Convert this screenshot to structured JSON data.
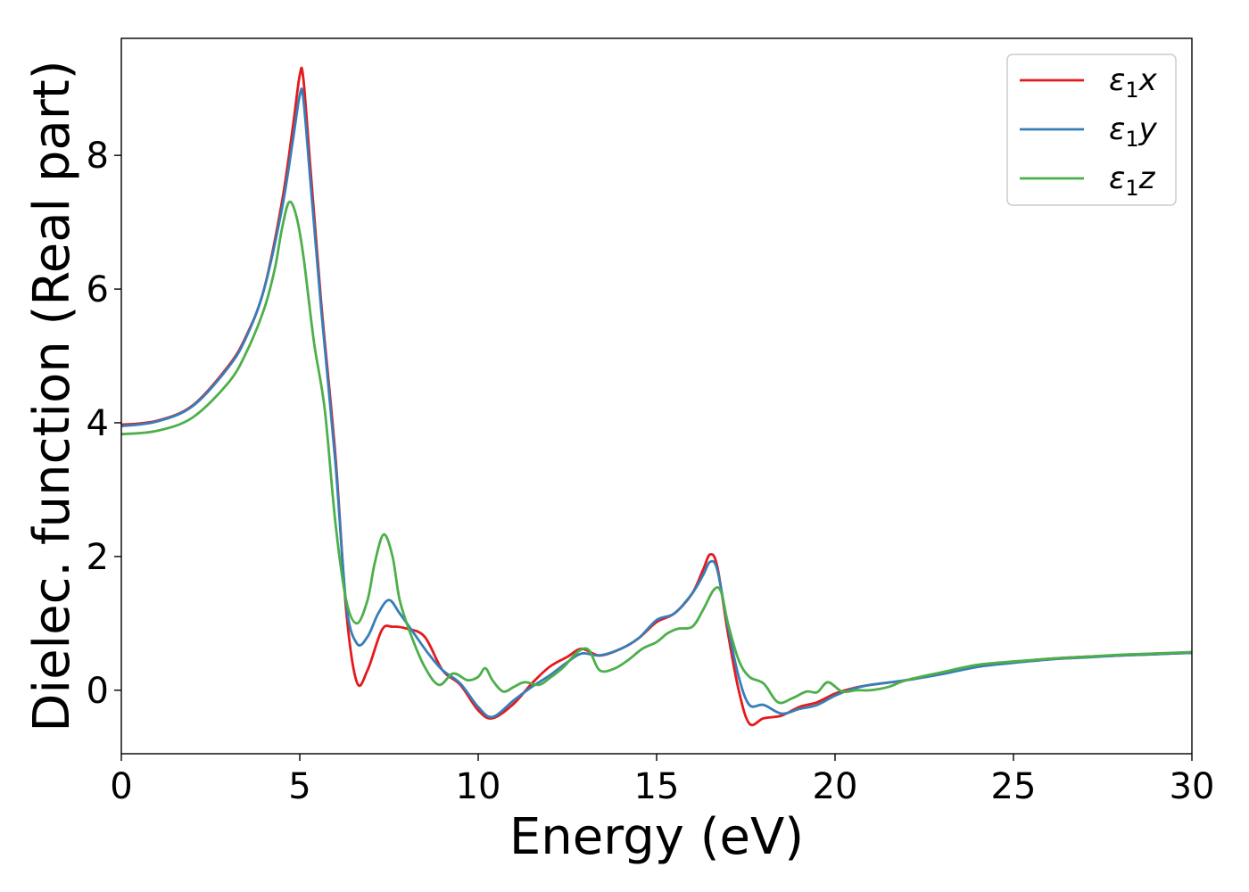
{
  "chart_data": {
    "type": "line",
    "title": "",
    "xlabel": "Energy (eV)",
    "ylabel": "Dielec. function (Real part)",
    "xlim": [
      0,
      30
    ],
    "ylim": [
      -0.95,
      9.75
    ],
    "xticks": [
      0,
      5,
      10,
      15,
      20,
      25,
      30
    ],
    "yticks": [
      0,
      2,
      4,
      6,
      8
    ],
    "grid": false,
    "legend_position": "top-right",
    "series": [
      {
        "name": "ε₁x",
        "label_base": "ε",
        "label_sub": "1",
        "label_tail": "x",
        "color": "#e41a1c",
        "x": [
          0,
          1,
          2,
          3,
          3.5,
          4,
          4.5,
          4.8,
          5.0,
          5.1,
          5.3,
          5.6,
          6.0,
          6.3,
          6.6,
          6.9,
          7.3,
          7.6,
          8.0,
          8.5,
          9.0,
          9.5,
          10.0,
          10.4,
          11.0,
          11.5,
          12.0,
          12.5,
          12.9,
          13.4,
          14.0,
          14.5,
          15.0,
          15.5,
          16.0,
          16.3,
          16.5,
          16.7,
          17.0,
          17.3,
          17.6,
          18.0,
          18.5,
          19.0,
          19.5,
          20.0,
          20.5,
          21.0,
          22.0,
          23.0,
          24.0,
          25.0,
          26.0,
          27.0,
          28.0,
          29.0,
          30.0
        ],
        "y": [
          3.97,
          4.03,
          4.26,
          4.85,
          5.3,
          6.0,
          7.3,
          8.4,
          9.2,
          9.15,
          7.8,
          5.8,
          3.5,
          1.2,
          0.12,
          0.3,
          0.9,
          0.95,
          0.92,
          0.8,
          0.3,
          0.08,
          -0.3,
          -0.42,
          -0.2,
          0.1,
          0.35,
          0.5,
          0.62,
          0.52,
          0.62,
          0.78,
          1.02,
          1.15,
          1.45,
          1.8,
          2.03,
          1.85,
          0.85,
          0.0,
          -0.5,
          -0.42,
          -0.38,
          -0.25,
          -0.18,
          -0.05,
          0.03,
          0.08,
          0.15,
          0.25,
          0.36,
          0.42,
          0.47,
          0.5,
          0.52,
          0.54,
          0.56
        ]
      },
      {
        "name": "ε₁y",
        "label_base": "ε",
        "label_sub": "1",
        "label_tail": "y",
        "color": "#377eb8",
        "x": [
          0,
          1,
          2,
          3,
          3.5,
          4,
          4.5,
          4.8,
          5.0,
          5.1,
          5.3,
          5.6,
          6.0,
          6.3,
          6.6,
          6.9,
          7.2,
          7.5,
          7.8,
          8.2,
          8.6,
          9.0,
          9.5,
          10.0,
          10.4,
          11.0,
          11.5,
          12.0,
          12.5,
          12.9,
          13.4,
          14.0,
          14.5,
          15.0,
          15.5,
          16.0,
          16.3,
          16.5,
          16.7,
          17.0,
          17.3,
          17.6,
          18.0,
          18.5,
          19.0,
          19.5,
          20.0,
          20.5,
          21.0,
          22.0,
          23.0,
          24.0,
          25.0,
          26.0,
          27.0,
          28.0,
          29.0,
          30.0
        ],
        "y": [
          3.95,
          4.02,
          4.25,
          4.83,
          5.28,
          6.0,
          7.2,
          8.2,
          8.9,
          8.85,
          7.6,
          5.7,
          3.4,
          1.3,
          0.7,
          0.8,
          1.15,
          1.35,
          1.15,
          0.85,
          0.55,
          0.3,
          0.1,
          -0.25,
          -0.4,
          -0.15,
          0.05,
          0.22,
          0.42,
          0.55,
          0.52,
          0.62,
          0.78,
          1.05,
          1.15,
          1.45,
          1.72,
          1.92,
          1.8,
          0.95,
          0.2,
          -0.22,
          -0.22,
          -0.35,
          -0.28,
          -0.22,
          -0.08,
          0.02,
          0.08,
          0.15,
          0.24,
          0.35,
          0.41,
          0.46,
          0.49,
          0.52,
          0.54,
          0.56
        ]
      },
      {
        "name": "ε₁z",
        "label_base": "ε",
        "label_sub": "1",
        "label_tail": "z",
        "color": "#4daf4a",
        "x": [
          0,
          1,
          2,
          3,
          3.5,
          4,
          4.3,
          4.5,
          4.7,
          4.9,
          5.1,
          5.4,
          5.7,
          6.0,
          6.3,
          6.6,
          6.9,
          7.1,
          7.35,
          7.6,
          7.8,
          8.1,
          8.5,
          8.9,
          9.3,
          9.7,
          10.0,
          10.2,
          10.4,
          10.7,
          11.0,
          11.3,
          11.7,
          12.0,
          12.4,
          12.8,
          13.1,
          13.4,
          13.8,
          14.2,
          14.6,
          15.0,
          15.3,
          15.6,
          16.0,
          16.3,
          16.6,
          16.8,
          17.0,
          17.3,
          17.6,
          18.0,
          18.4,
          18.8,
          19.2,
          19.5,
          19.8,
          20.2,
          20.6,
          21.0,
          21.5,
          22.0,
          23.0,
          24.0,
          25.0,
          26.0,
          27.0,
          28.0,
          29.0,
          30.0
        ],
        "y": [
          3.83,
          3.88,
          4.08,
          4.6,
          5.05,
          5.7,
          6.3,
          6.9,
          7.3,
          7.1,
          6.5,
          5.2,
          4.2,
          2.5,
          1.35,
          1.0,
          1.35,
          1.9,
          2.33,
          2.0,
          1.35,
          0.85,
          0.35,
          0.08,
          0.25,
          0.15,
          0.2,
          0.33,
          0.15,
          -0.02,
          0.05,
          0.12,
          0.08,
          0.18,
          0.35,
          0.58,
          0.6,
          0.3,
          0.32,
          0.45,
          0.62,
          0.72,
          0.85,
          0.92,
          0.95,
          1.2,
          1.5,
          1.48,
          1.0,
          0.45,
          0.2,
          0.1,
          -0.18,
          -0.12,
          -0.02,
          -0.03,
          0.12,
          -0.02,
          0.0,
          0.0,
          0.05,
          0.15,
          0.27,
          0.38,
          0.43,
          0.47,
          0.5,
          0.53,
          0.55,
          0.57
        ]
      }
    ]
  }
}
